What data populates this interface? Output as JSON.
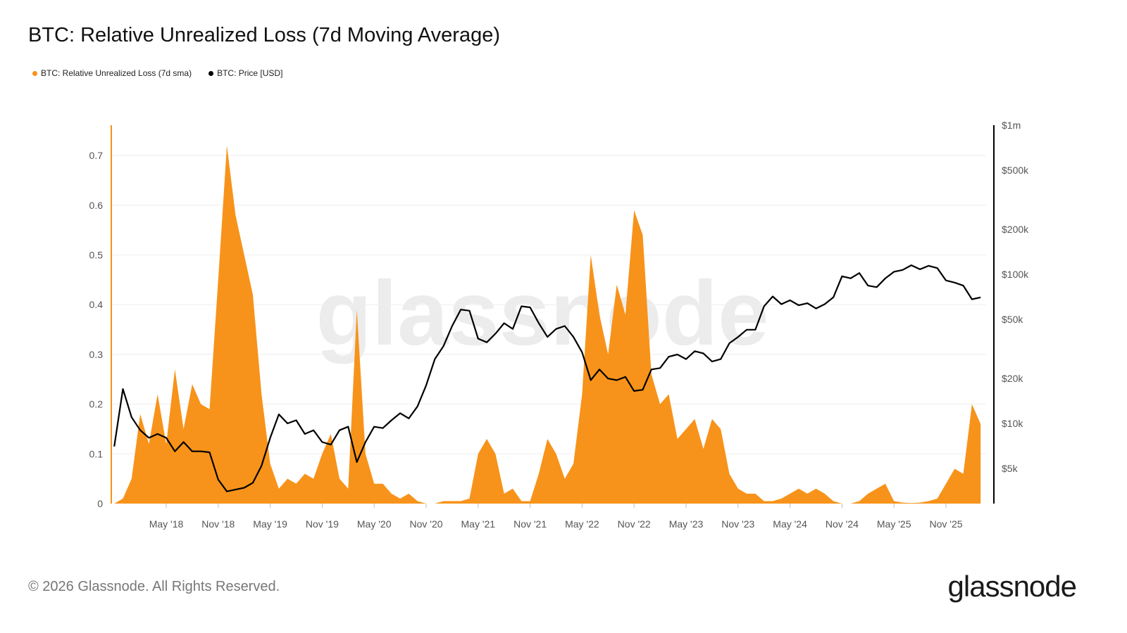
{
  "chart_data": {
    "type": "area+line",
    "title": "BTC: Relative Unrealized Loss (7d Moving Average)",
    "legend_position": "top-left",
    "grid": true,
    "colors": {
      "loss": "#f7931a",
      "price": "#000000"
    },
    "x_ticks": [
      "May '18",
      "Nov '18",
      "May '19",
      "Nov '19",
      "May '20",
      "Nov '20",
      "May '21",
      "Nov '21",
      "May '22",
      "Nov '22",
      "May '23",
      "Nov '23",
      "May '24",
      "Nov '24",
      "May '25",
      "Nov '25"
    ],
    "y_left": {
      "ticks": [
        "0",
        "0.1",
        "0.2",
        "0.3",
        "0.4",
        "0.5",
        "0.6",
        "0.7"
      ],
      "ylim": [
        0,
        0.75
      ]
    },
    "y_right": {
      "scale": "log",
      "ticks": [
        "$5k",
        "$10k",
        "$20k",
        "$50k",
        "$100k",
        "$200k",
        "$500k",
        "$1m"
      ],
      "tick_values": [
        5000,
        10000,
        20000,
        50000,
        100000,
        200000,
        500000,
        1000000
      ]
    },
    "months": [
      "2017-11",
      "2017-12",
      "2018-01",
      "2018-02",
      "2018-03",
      "2018-04",
      "2018-05",
      "2018-06",
      "2018-07",
      "2018-08",
      "2018-09",
      "2018-10",
      "2018-11",
      "2018-12",
      "2019-01",
      "2019-02",
      "2019-03",
      "2019-04",
      "2019-05",
      "2019-06",
      "2019-07",
      "2019-08",
      "2019-09",
      "2019-10",
      "2019-11",
      "2019-12",
      "2020-01",
      "2020-02",
      "2020-03",
      "2020-04",
      "2020-05",
      "2020-06",
      "2020-07",
      "2020-08",
      "2020-09",
      "2020-10",
      "2020-11",
      "2020-12",
      "2021-01",
      "2021-02",
      "2021-03",
      "2021-04",
      "2021-05",
      "2021-06",
      "2021-07",
      "2021-08",
      "2021-09",
      "2021-10",
      "2021-11",
      "2021-12",
      "2022-01",
      "2022-02",
      "2022-03",
      "2022-04",
      "2022-05",
      "2022-06",
      "2022-07",
      "2022-08",
      "2022-09",
      "2022-10",
      "2022-11",
      "2022-12",
      "2023-01",
      "2023-02",
      "2023-03",
      "2023-04",
      "2023-05",
      "2023-06",
      "2023-07",
      "2023-08",
      "2023-09",
      "2023-10",
      "2023-11",
      "2023-12",
      "2024-01",
      "2024-02",
      "2024-03",
      "2024-04",
      "2024-05",
      "2024-06",
      "2024-07",
      "2024-08",
      "2024-09",
      "2024-10",
      "2024-11",
      "2024-12",
      "2025-01",
      "2025-02",
      "2025-03",
      "2025-04",
      "2025-05",
      "2025-06",
      "2025-07",
      "2025-08",
      "2025-09",
      "2025-10",
      "2025-11",
      "2025-12",
      "2026-01",
      "2026-02",
      "2026-03"
    ],
    "series": [
      {
        "name": "BTC: Relative Unrealized Loss (7d sma)",
        "axis": "left",
        "values": [
          0,
          0.01,
          0.05,
          0.18,
          0.12,
          0.22,
          0.12,
          0.27,
          0.15,
          0.24,
          0.2,
          0.19,
          0.45,
          0.72,
          0.58,
          0.5,
          0.42,
          0.22,
          0.08,
          0.03,
          0.05,
          0.04,
          0.06,
          0.05,
          0.1,
          0.14,
          0.05,
          0.03,
          0.39,
          0.1,
          0.04,
          0.04,
          0.02,
          0.01,
          0.02,
          0.005,
          0,
          0,
          0.005,
          0.005,
          0.005,
          0.01,
          0.1,
          0.13,
          0.1,
          0.02,
          0.03,
          0.005,
          0.005,
          0.06,
          0.13,
          0.1,
          0.05,
          0.08,
          0.22,
          0.5,
          0.38,
          0.3,
          0.44,
          0.38,
          0.59,
          0.54,
          0.26,
          0.2,
          0.22,
          0.13,
          0.15,
          0.17,
          0.11,
          0.17,
          0.15,
          0.06,
          0.03,
          0.02,
          0.02,
          0.005,
          0.005,
          0.01,
          0.02,
          0.03,
          0.02,
          0.03,
          0.02,
          0.005,
          0,
          0,
          0.005,
          0.02,
          0.03,
          0.04,
          0.005,
          0.002,
          0.001,
          0.002,
          0.005,
          0.01,
          0.04,
          0.07,
          0.06,
          0.2,
          0.16
        ]
      },
      {
        "name": "BTC: Price [USD]",
        "axis": "right",
        "values": [
          7000,
          17000,
          11000,
          9000,
          8000,
          8500,
          8000,
          6500,
          7500,
          6500,
          6500,
          6400,
          4200,
          3500,
          3600,
          3700,
          4000,
          5200,
          8000,
          11500,
          10000,
          10500,
          8500,
          9000,
          7500,
          7200,
          9000,
          9500,
          5500,
          7500,
          9500,
          9300,
          10500,
          11700,
          10800,
          13000,
          18000,
          27000,
          33000,
          45000,
          58000,
          57000,
          37000,
          35000,
          40000,
          47000,
          43000,
          61000,
          60000,
          47000,
          38000,
          43000,
          45000,
          38000,
          30000,
          19500,
          23000,
          20000,
          19500,
          20500,
          16500,
          16800,
          23000,
          23500,
          28000,
          29000,
          27000,
          30500,
          29500,
          26000,
          27000,
          34500,
          38000,
          42500,
          42500,
          61000,
          71000,
          63000,
          67000,
          62000,
          64000,
          59000,
          63000,
          70000,
          97000,
          94000,
          102000,
          84000,
          82000,
          94000,
          104000,
          107000,
          115000,
          108000,
          114000,
          110000,
          91000,
          88000,
          84000,
          68000,
          70000
        ]
      }
    ]
  },
  "footer": {
    "copyright": "© 2026 Glassnode. All Rights Reserved.",
    "logo": "glassnode",
    "watermark": "glassnode"
  }
}
